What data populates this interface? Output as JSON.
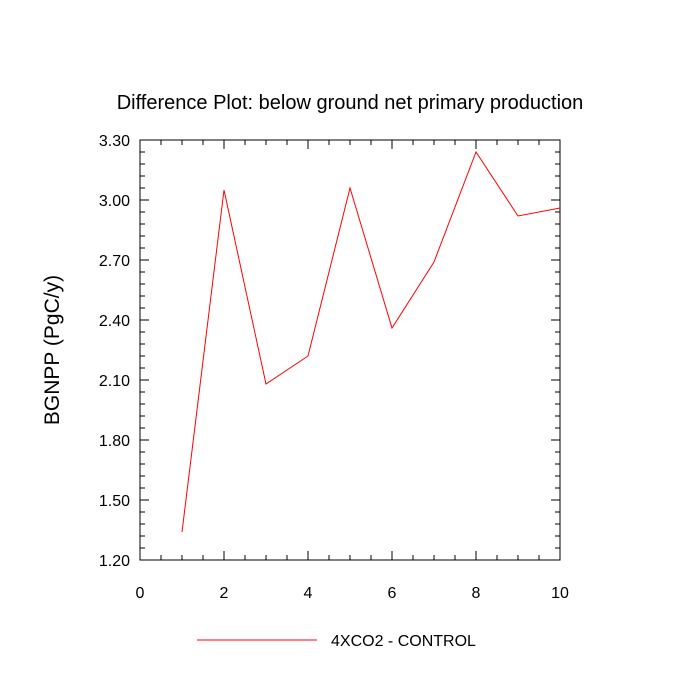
{
  "chart_data": {
    "type": "line",
    "title": "Difference Plot: below ground net primary production",
    "xlabel": "",
    "ylabel": "BGNPP  (PgC/y)",
    "xlim": [
      0,
      10
    ],
    "ylim": [
      1.2,
      3.3
    ],
    "xticks": [
      0,
      2,
      4,
      6,
      8,
      10
    ],
    "xtick_labels": [
      "0",
      "2",
      "4",
      "6",
      "8",
      "10"
    ],
    "yticks": [
      1.2,
      1.5,
      1.8,
      2.1,
      2.4,
      2.7,
      3.0,
      3.3
    ],
    "ytick_labels": [
      "1.20",
      "1.50",
      "1.80",
      "2.10",
      "2.40",
      "2.70",
      "3.00",
      "3.30"
    ],
    "grid": false,
    "legend_position": "bottom-center",
    "series": [
      {
        "name": "4XCO2 - CONTROL",
        "color": "#ff0000",
        "x": [
          1,
          2,
          3,
          4,
          5,
          6,
          7,
          8,
          9,
          10
        ],
        "y": [
          1.34,
          3.05,
          2.08,
          2.22,
          3.06,
          2.36,
          2.69,
          3.24,
          2.92,
          2.96
        ]
      }
    ]
  }
}
